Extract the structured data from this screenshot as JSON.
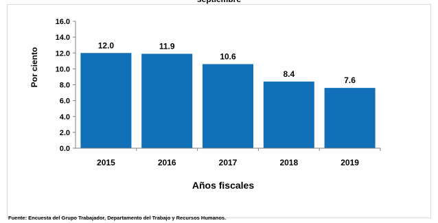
{
  "chart_data": {
    "type": "bar",
    "title": "septiembre",
    "categories": [
      "2015",
      "2016",
      "2017",
      "2018",
      "2019"
    ],
    "values": [
      12.0,
      11.9,
      10.6,
      8.4,
      7.6
    ],
    "data_labels": [
      "12.0",
      "11.9",
      "10.6",
      "8.4",
      "7.6"
    ],
    "xlabel": "Años fiscales",
    "ylabel": "Por ciento",
    "ylim": [
      0,
      16
    ],
    "yticks": [
      0,
      2,
      4,
      6,
      8,
      10,
      12,
      14,
      16
    ],
    "ytick_labels": [
      "0.0",
      "2.0",
      "4.0",
      "6.0",
      "8.0",
      "10.0",
      "12.0",
      "14.0",
      "16.0"
    ],
    "grid": false,
    "legend": "none",
    "bar_color": "#1170b8"
  },
  "source": "Fuente: Encuesta del Grupo Trabajador, Departamento del Trabajo y Recursos Humanos."
}
